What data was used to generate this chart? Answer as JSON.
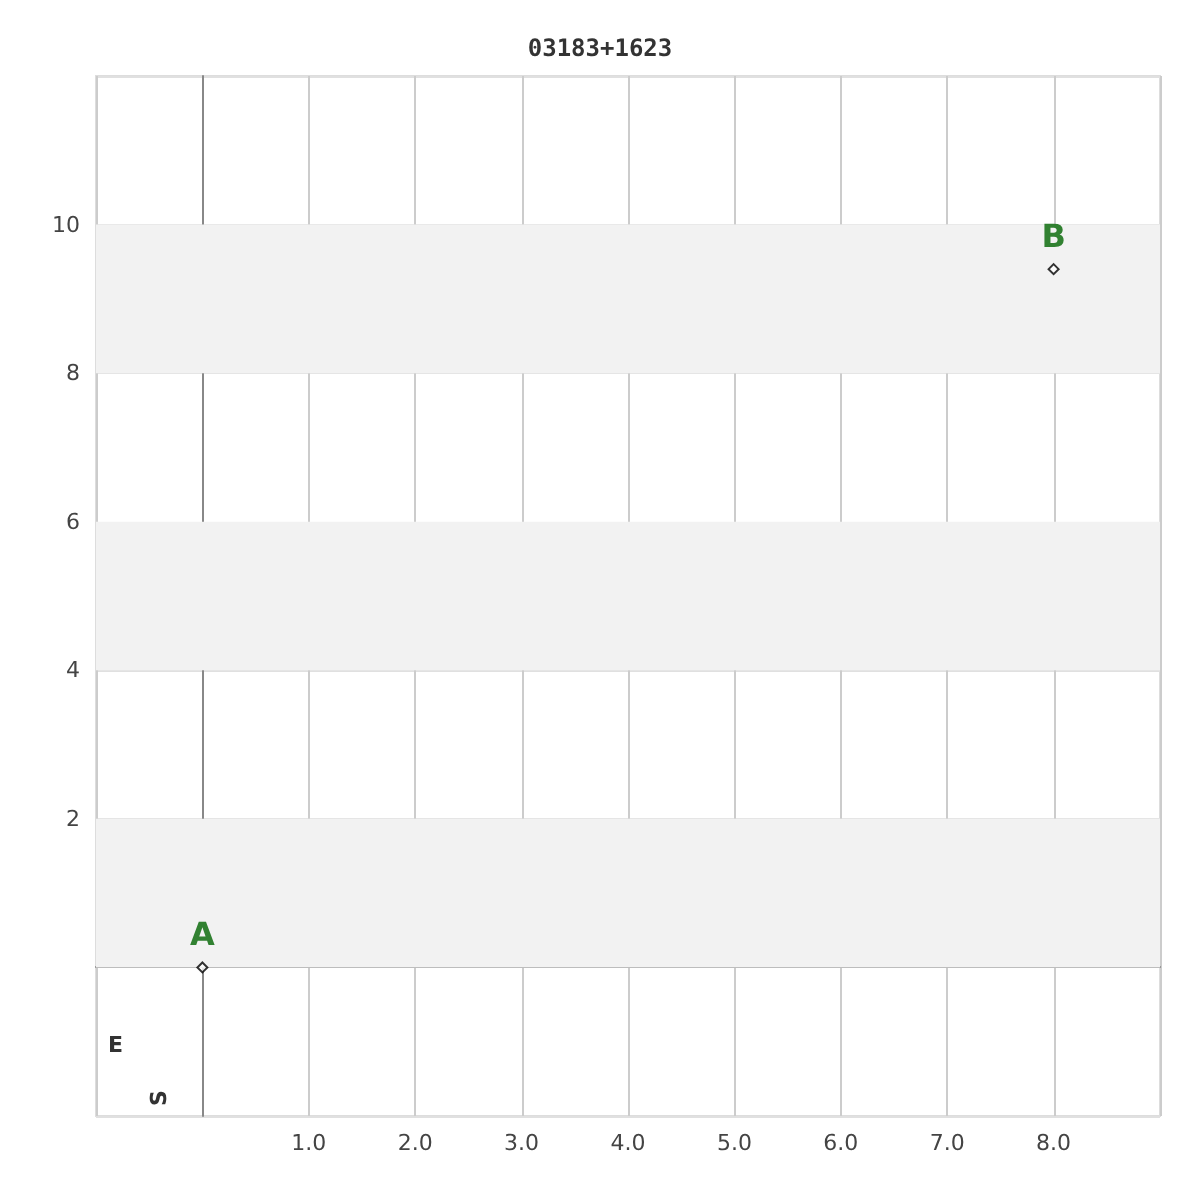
{
  "chart_data": {
    "type": "scatter",
    "title": "03183+1623",
    "x": [
      0,
      8.0
    ],
    "series": [
      {
        "color": "#000000",
        "values": [
          0,
          9.4
        ]
      }
    ],
    "xlim": [
      -1,
      9
    ],
    "ylim": [
      -2,
      12
    ],
    "xticks": [
      {
        "value": 1,
        "label": "1.0"
      },
      {
        "value": 2,
        "label": "2.0"
      },
      {
        "value": 3,
        "label": "3.0"
      },
      {
        "value": 4,
        "label": "4.0"
      },
      {
        "value": 5,
        "label": "5.0"
      },
      {
        "value": 6,
        "label": "6.0"
      },
      {
        "value": 7,
        "label": "7.0"
      },
      {
        "value": 8,
        "label": "8.0"
      }
    ],
    "yticks": [
      2,
      4,
      6,
      8,
      10
    ],
    "grid": true,
    "marker": "diamond",
    "bands": [
      {
        "axis": "y",
        "from": 0,
        "to": 2,
        "color": "#f2f2f2"
      },
      {
        "axis": "y",
        "from": 4,
        "to": 6,
        "color": "#f2f2f2"
      },
      {
        "axis": "y",
        "from": 8,
        "to": 10,
        "color": "#f2f2f2"
      }
    ],
    "annotations": [
      {
        "text": "A",
        "x": 0,
        "y": 0
      },
      {
        "text": "B",
        "x": 8.0,
        "y": 9.4
      },
      "E",
      "S"
    ]
  }
}
